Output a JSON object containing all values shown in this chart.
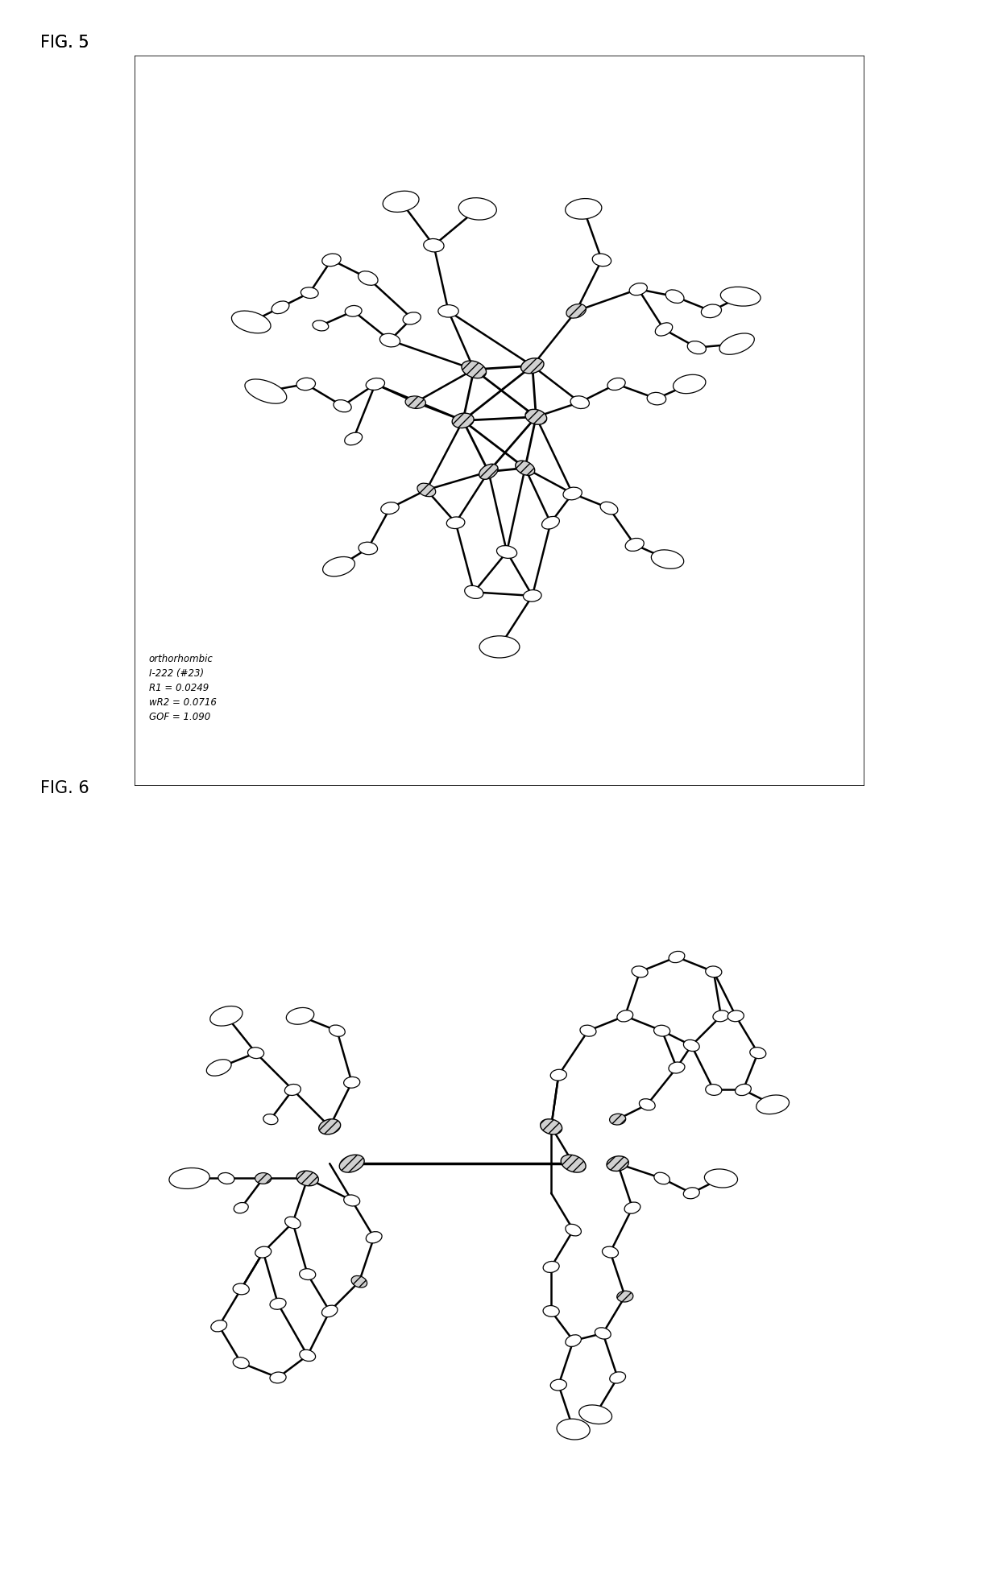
{
  "fig5_label": "FIG. 5",
  "fig6_label": "FIG. 6",
  "annotation_text": "orthorhombic\nI-222 (#23)\nR1 = 0.0249\nwR2 = 0.0716\nGOF = 1.090",
  "bg_color": "#ffffff",
  "label_fontsize": 15,
  "annotation_fontsize": 8.5
}
